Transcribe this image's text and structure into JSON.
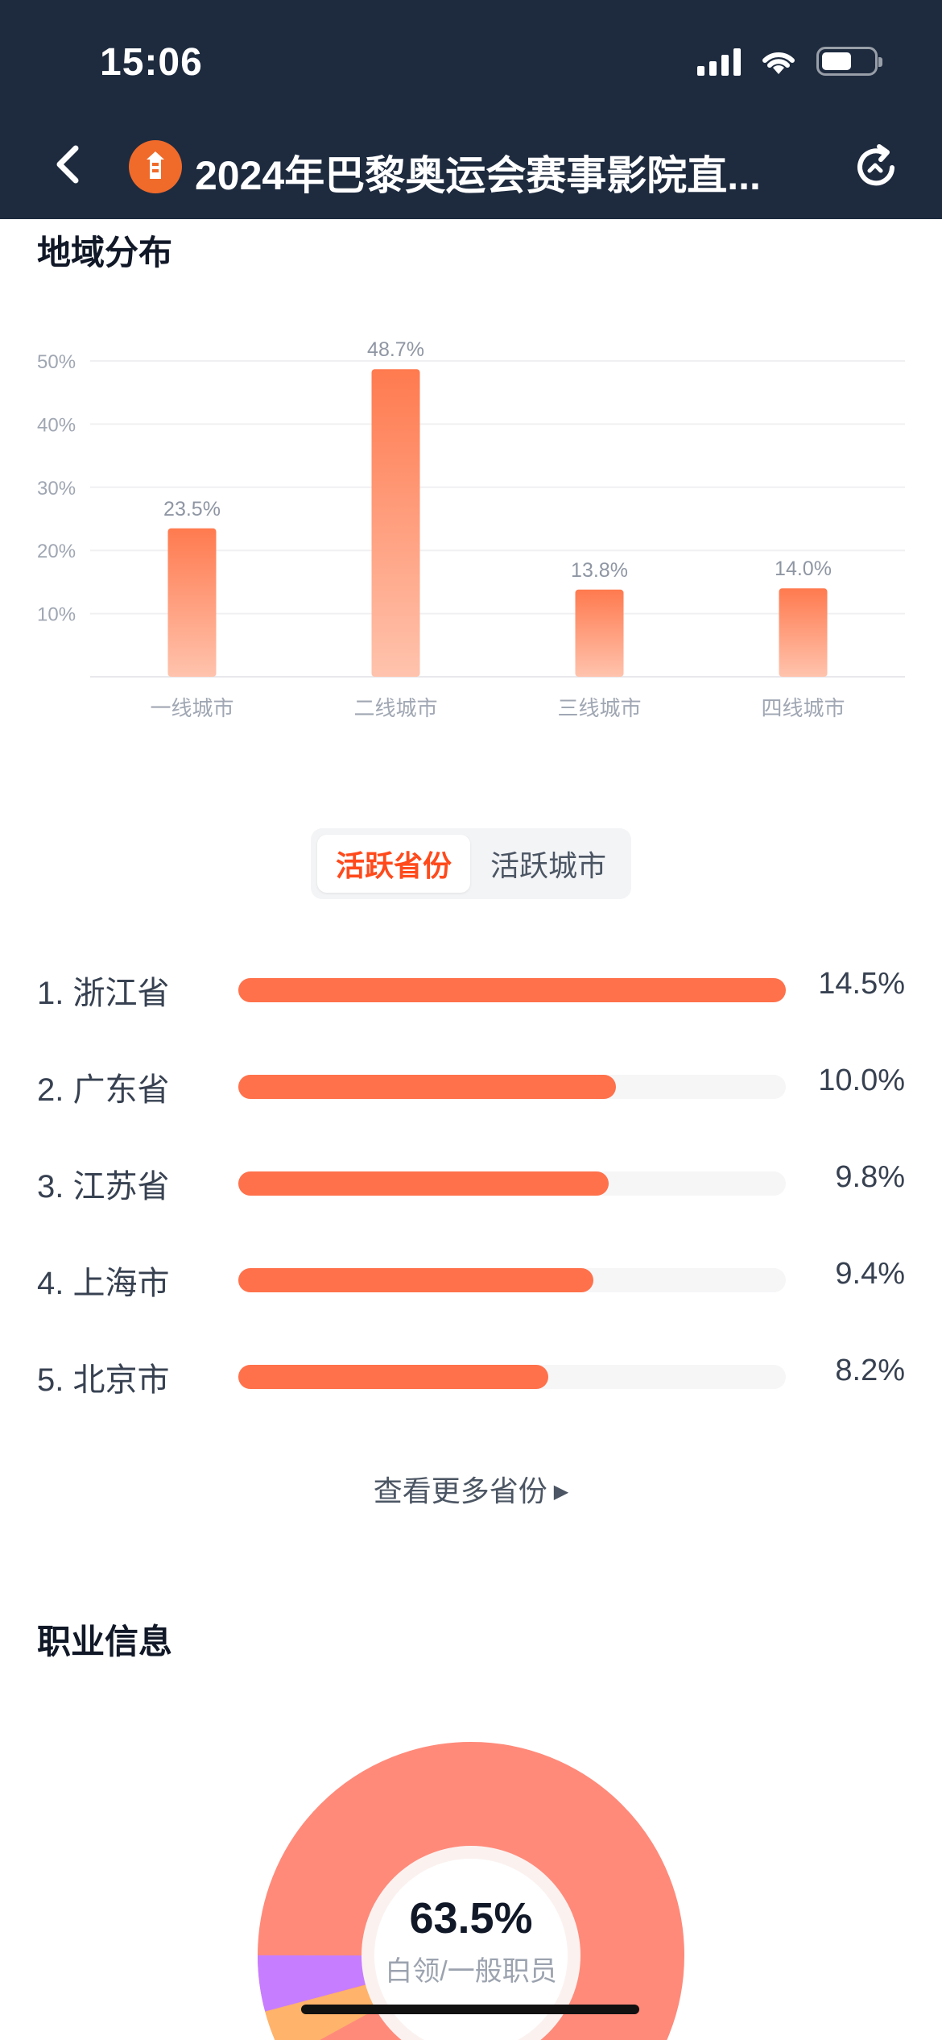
{
  "status_bar": {
    "time": "15:06"
  },
  "nav": {
    "title": "2024年巴黎奥运会赛事影院直..."
  },
  "region": {
    "title": "地域分布"
  },
  "chart_data": {
    "type": "bar",
    "categories": [
      "一线城市",
      "二线城市",
      "三线城市",
      "四线城市"
    ],
    "values": [
      23.5,
      48.7,
      13.8,
      14.0
    ],
    "value_labels": [
      "23.5%",
      "48.7%",
      "13.8%",
      "14.0%"
    ],
    "yticks": [
      "10%",
      "20%",
      "30%",
      "40%",
      "50%"
    ],
    "ylim": [
      0,
      50
    ],
    "grid": true,
    "colors": {
      "bar_top": "#ff7a4f",
      "bar_bottom": "#ffc3ad"
    }
  },
  "tabs": [
    {
      "label": "活跃省份",
      "active": true
    },
    {
      "label": "活跃城市",
      "active": false
    }
  ],
  "provinces": [
    {
      "label": "1. 浙江省",
      "value": "14.5%",
      "fraction": 1.0
    },
    {
      "label": "2. 广东省",
      "value": "10.0%",
      "fraction": 0.69
    },
    {
      "label": "3. 江苏省",
      "value": "9.8%",
      "fraction": 0.676
    },
    {
      "label": "4. 上海市",
      "value": "9.4%",
      "fraction": 0.648
    },
    {
      "label": "5. 北京市",
      "value": "8.2%",
      "fraction": 0.566
    }
  ],
  "more_link": "查看更多省份",
  "occupation": {
    "title": "职业信息",
    "center_value": "63.5%",
    "center_label": "白领/一般职员",
    "colors": {
      "main": "#ff8a7a",
      "purple": "#c77dff",
      "orange": "#ffb36b"
    }
  },
  "colors": {
    "accent": "#ff4a1c",
    "bar": "#ff714b",
    "header_bg": "#1e2b3f"
  }
}
